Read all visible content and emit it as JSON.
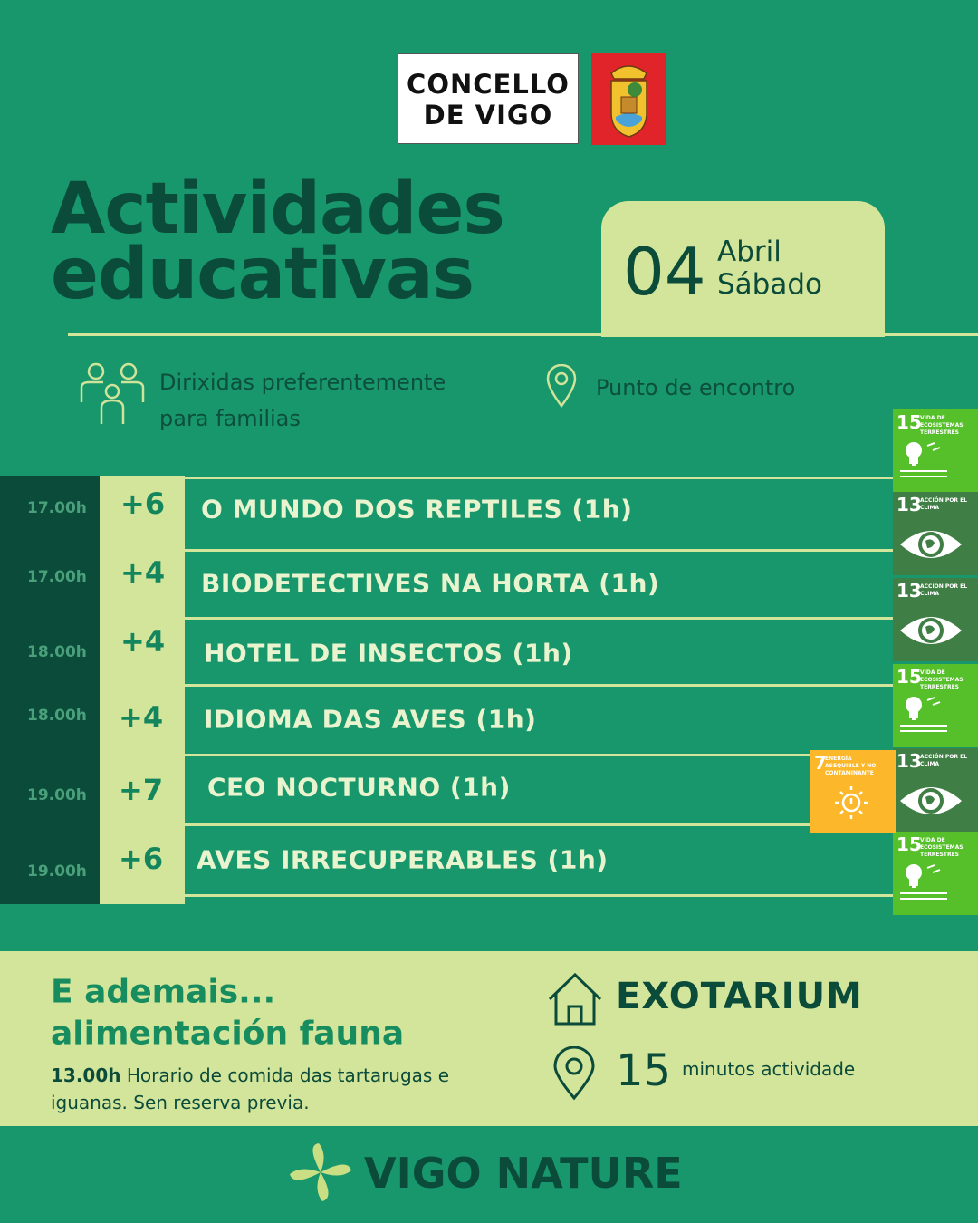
{
  "header": {
    "logo_lines": [
      "CONCELLO",
      "DE VIGO"
    ]
  },
  "title": [
    "Actividades",
    "educativas"
  ],
  "date": {
    "day": "04",
    "month": "Abril",
    "weekday": "Sábado"
  },
  "info": {
    "audience": "Dirixidas preferentemente para familias",
    "meeting_point": "Punto de encontro"
  },
  "activities": [
    {
      "time": "17.00h",
      "age": "+6",
      "name": "O MUNDO DOS REPTILES (1h)"
    },
    {
      "time": "17.00h",
      "age": "+4",
      "name": "BIODETECTIVES NA HORTA (1h)"
    },
    {
      "time": "18.00h",
      "age": "+4",
      "name": "HOTEL DE INSECTOS (1h)"
    },
    {
      "time": "18.00h",
      "age": "+4",
      "name": "IDIOMA DAS AVES (1h)"
    },
    {
      "time": "19.00h",
      "age": "+7",
      "name": "CEO NOCTURNO (1h)"
    },
    {
      "time": "19.00h",
      "age": "+6",
      "name": "AVES IRRECUPERABLES (1h)"
    }
  ],
  "sdg_badges": [
    {
      "number": "15",
      "label": "VIDA DE ECOSISTEMAS TERRESTRES"
    },
    {
      "number": "13",
      "label": "ACCIÓN POR EL CLIMA"
    },
    {
      "number": "13",
      "label": "ACCIÓN POR EL CLIMA"
    },
    {
      "number": "15",
      "label": "VIDA DE ECOSISTEMAS TERRESTRES"
    },
    {
      "number": "13",
      "label": "ACCIÓN POR EL CLIMA"
    },
    {
      "number": "15",
      "label": "VIDA DE ECOSISTEMAS TERRESTRES"
    },
    {
      "number": "7",
      "label": "ENERGÍA ASEQUIBLE Y NO CONTAMINANTE"
    }
  ],
  "extra": {
    "title": [
      "E ademais...",
      "alimentación fauna"
    ],
    "time": "13.00h",
    "text": "Horario de comida das tartarugas e iguanas. Sen reserva previa."
  },
  "venue": {
    "name": "EXOTARIUM",
    "duration": "15",
    "duration_label": "minutos actividade"
  },
  "footer": {
    "brand": "VIGO NATURE"
  }
}
